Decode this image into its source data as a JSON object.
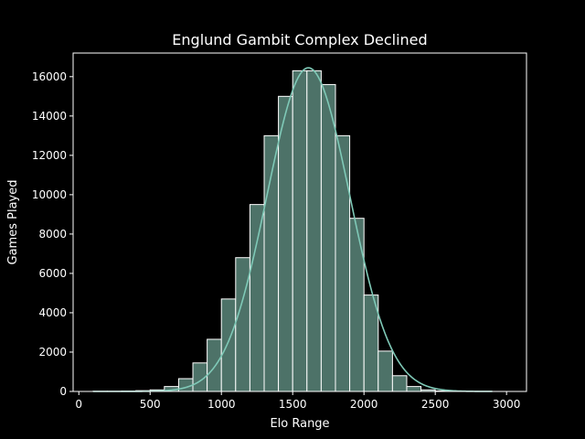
{
  "chart_data": {
    "type": "bar",
    "title": "Englund Gambit Complex Declined",
    "xlabel": "Elo Range",
    "ylabel": "Games Played",
    "xlim": [
      -40,
      3140
    ],
    "ylim": [
      0,
      17200
    ],
    "xticks": [
      0,
      500,
      1000,
      1500,
      2000,
      2500,
      3000
    ],
    "yticks": [
      0,
      2000,
      4000,
      6000,
      8000,
      10000,
      12000,
      14000,
      16000
    ],
    "bins": [
      {
        "x0": 100,
        "x1": 200,
        "value": 10
      },
      {
        "x0": 200,
        "x1": 300,
        "value": 10
      },
      {
        "x0": 300,
        "x1": 400,
        "value": 20
      },
      {
        "x0": 400,
        "x1": 500,
        "value": 40
      },
      {
        "x0": 500,
        "x1": 600,
        "value": 80
      },
      {
        "x0": 600,
        "x1": 700,
        "value": 250
      },
      {
        "x0": 700,
        "x1": 800,
        "value": 650
      },
      {
        "x0": 800,
        "x1": 900,
        "value": 1450
      },
      {
        "x0": 900,
        "x1": 1000,
        "value": 2650
      },
      {
        "x0": 1000,
        "x1": 1100,
        "value": 4700
      },
      {
        "x0": 1100,
        "x1": 1200,
        "value": 6800
      },
      {
        "x0": 1200,
        "x1": 1300,
        "value": 9500
      },
      {
        "x0": 1300,
        "x1": 1400,
        "value": 13000
      },
      {
        "x0": 1400,
        "x1": 1500,
        "value": 15000
      },
      {
        "x0": 1500,
        "x1": 1600,
        "value": 16300
      },
      {
        "x0": 1600,
        "x1": 1700,
        "value": 16300
      },
      {
        "x0": 1700,
        "x1": 1800,
        "value": 15600
      },
      {
        "x0": 1800,
        "x1": 1900,
        "value": 13000
      },
      {
        "x0": 1900,
        "x1": 2000,
        "value": 8800
      },
      {
        "x0": 2000,
        "x1": 2100,
        "value": 4900
      },
      {
        "x0": 2100,
        "x1": 2200,
        "value": 2050
      },
      {
        "x0": 2200,
        "x1": 2300,
        "value": 800
      },
      {
        "x0": 2300,
        "x1": 2400,
        "value": 250
      },
      {
        "x0": 2400,
        "x1": 2500,
        "value": 80
      },
      {
        "x0": 2500,
        "x1": 2600,
        "value": 25
      },
      {
        "x0": 2600,
        "x1": 2700,
        "value": 10
      },
      {
        "x0": 2700,
        "x1": 2800,
        "value": 5
      },
      {
        "x0": 2800,
        "x1": 2900,
        "value": 2
      }
    ],
    "kde": {
      "mean": 1610,
      "sd": 290,
      "peak": 16450,
      "x_range": [
        100,
        2900
      ]
    },
    "grid": false,
    "colors": {
      "background": "#000000",
      "bar_fill": "#4d7268",
      "bar_edge": "#ffffff",
      "kde_line": "#7fc9b7",
      "axes": "#ffffff"
    }
  }
}
